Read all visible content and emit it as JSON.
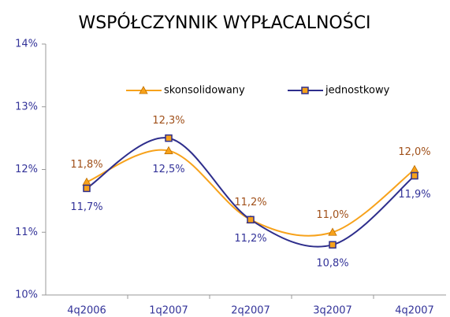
{
  "chart_data": {
    "type": "line",
    "title": "WSPÓŁCZYNNIK WYPŁACALNOŚCI",
    "categories": [
      "4q2006",
      "1q2007",
      "2q2007",
      "3q2007",
      "4q2007"
    ],
    "series": [
      {
        "name": "skonsolidowany",
        "color": "#f7a21b",
        "label_color": "#a0501a",
        "marker": "triangle",
        "values": [
          11.8,
          12.3,
          11.2,
          11.0,
          12.0
        ],
        "value_labels": [
          "11,8%",
          "12,3%",
          "11,2%",
          "11,0%",
          "12,0%"
        ]
      },
      {
        "name": "jednostkowy",
        "color": "#2e2e8c",
        "label_color": "#333399",
        "marker": "square",
        "values": [
          11.7,
          12.5,
          11.2,
          10.8,
          11.9
        ],
        "value_labels": [
          "11,7%",
          "12,5%",
          "11,2%",
          "10,8%",
          "11,9%"
        ]
      }
    ],
    "ylim": [
      10,
      14
    ],
    "yticks": [
      {
        "value": 10,
        "label": "10%"
      },
      {
        "value": 11,
        "label": "11%"
      },
      {
        "value": 12,
        "label": "12%"
      },
      {
        "value": 13,
        "label": "13%"
      },
      {
        "value": 14,
        "label": "14%"
      }
    ],
    "smooth": true,
    "legend": "top"
  }
}
